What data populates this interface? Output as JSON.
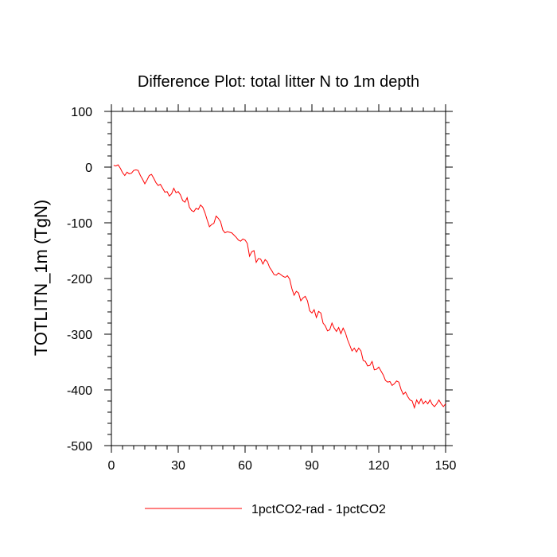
{
  "chart_data": {
    "type": "line",
    "title": "Difference Plot: total litter N to 1m depth",
    "ylabel": "TOTLITN_1m  (TgN)",
    "xlabel": "",
    "xlim": [
      0,
      150
    ],
    "ylim": [
      -500,
      100
    ],
    "xticks": [
      0,
      30,
      60,
      90,
      120,
      150
    ],
    "yticks": [
      100,
      0,
      -100,
      -200,
      -300,
      -400,
      -500
    ],
    "x_minor_step": 5,
    "y_minor_step": 20,
    "grid": false,
    "legend_position": "bottom-center",
    "series": [
      {
        "name": "1pctCO2-rad - 1pctCO2",
        "color": "#ff0000",
        "x": [
          1,
          2,
          3,
          4,
          5,
          6,
          7,
          8,
          9,
          10,
          11,
          12,
          13,
          14,
          15,
          16,
          17,
          18,
          19,
          20,
          21,
          22,
          23,
          24,
          25,
          26,
          27,
          28,
          29,
          30,
          31,
          32,
          33,
          34,
          35,
          36,
          37,
          38,
          39,
          40,
          41,
          42,
          43,
          44,
          45,
          46,
          47,
          48,
          49,
          50,
          51,
          52,
          53,
          54,
          55,
          56,
          57,
          58,
          59,
          60,
          61,
          62,
          63,
          64,
          65,
          66,
          67,
          68,
          69,
          70,
          71,
          72,
          73,
          74,
          75,
          76,
          77,
          78,
          79,
          80,
          81,
          82,
          83,
          84,
          85,
          86,
          87,
          88,
          89,
          90,
          91,
          92,
          93,
          94,
          95,
          96,
          97,
          98,
          99,
          100,
          101,
          102,
          103,
          104,
          105,
          106,
          107,
          108,
          109,
          110,
          111,
          112,
          113,
          114,
          115,
          116,
          117,
          118,
          119,
          120,
          121,
          122,
          123,
          124,
          125,
          126,
          127,
          128,
          129,
          130,
          131,
          132,
          133,
          134,
          135,
          136,
          137,
          138,
          139,
          140,
          141,
          142,
          143,
          144,
          145,
          146,
          147,
          148,
          149,
          150
        ],
        "values": [
          3,
          2,
          4,
          -2,
          -10,
          -15,
          -9,
          -12,
          -11,
          -6,
          -5,
          -6,
          -15,
          -22,
          -30,
          -23,
          -15,
          -13,
          -20,
          -28,
          -33,
          -31,
          -38,
          -45,
          -44,
          -52,
          -48,
          -38,
          -46,
          -44,
          -50,
          -60,
          -63,
          -55,
          -72,
          -78,
          -80,
          -74,
          -76,
          -68,
          -72,
          -82,
          -95,
          -107,
          -103,
          -101,
          -88,
          -92,
          -98,
          -113,
          -118,
          -116,
          -117,
          -118,
          -122,
          -126,
          -131,
          -133,
          -129,
          -131,
          -137,
          -160,
          -152,
          -150,
          -171,
          -164,
          -165,
          -174,
          -166,
          -170,
          -180,
          -186,
          -193,
          -194,
          -190,
          -193,
          -196,
          -198,
          -195,
          -201,
          -218,
          -230,
          -223,
          -226,
          -240,
          -235,
          -232,
          -240,
          -258,
          -262,
          -256,
          -270,
          -259,
          -262,
          -280,
          -285,
          -294,
          -292,
          -280,
          -289,
          -295,
          -288,
          -299,
          -289,
          -297,
          -310,
          -320,
          -330,
          -325,
          -332,
          -325,
          -330,
          -347,
          -349,
          -357,
          -356,
          -349,
          -364,
          -363,
          -359,
          -366,
          -373,
          -383,
          -386,
          -385,
          -392,
          -389,
          -384,
          -386,
          -399,
          -408,
          -404,
          -412,
          -418,
          -420,
          -432,
          -418,
          -425,
          -416,
          -425,
          -420,
          -425,
          -418,
          -426,
          -430,
          -425,
          -418,
          -425,
          -430,
          -425
        ]
      }
    ]
  }
}
